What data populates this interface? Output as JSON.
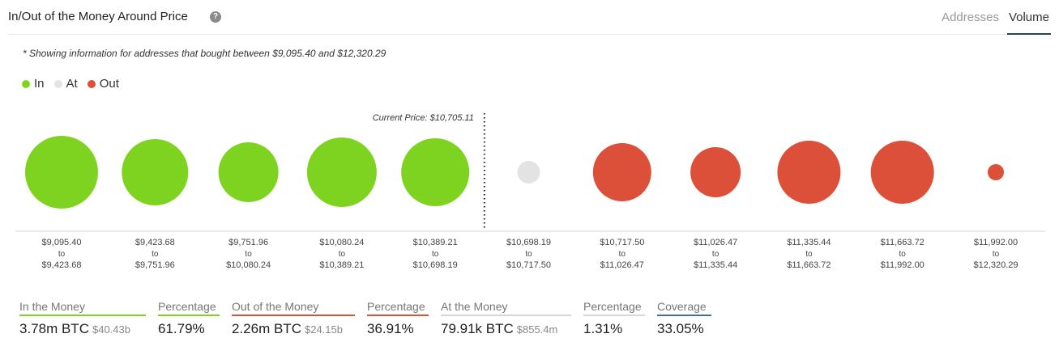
{
  "header": {
    "title": "In/Out of the Money Around Price",
    "help_icon": "question-circle-icon",
    "tabs": [
      {
        "label": "Addresses",
        "active": false
      },
      {
        "label": "Volume",
        "active": true
      }
    ]
  },
  "note": "* Showing information for addresses that bought between $9,095.40 and $12,320.29",
  "legend": [
    {
      "label": "In",
      "color": "#7ed321"
    },
    {
      "label": "At",
      "color": "#e3e3e3"
    },
    {
      "label": "Out",
      "color": "#dc4f38"
    }
  ],
  "chart_data": {
    "type": "scatter",
    "current_price_label": "Current Price: $10,705.11",
    "current_price_after_index": 4,
    "bubbles": [
      {
        "from": "$9,095.40",
        "to": "$9,423.68",
        "status": "in",
        "size": 45
      },
      {
        "from": "$9,423.68",
        "to": "$9,751.96",
        "status": "in",
        "size": 41
      },
      {
        "from": "$9,751.96",
        "to": "$10,080.24",
        "status": "in",
        "size": 37
      },
      {
        "from": "$10,080.24",
        "to": "$10,389.21",
        "status": "in",
        "size": 43
      },
      {
        "from": "$10,389.21",
        "to": "$10,698.19",
        "status": "in",
        "size": 42
      },
      {
        "from": "$10,698.19",
        "to": "$10,717.50",
        "status": "at",
        "size": 14
      },
      {
        "from": "$10,717.50",
        "to": "$11,026.47",
        "status": "out",
        "size": 36
      },
      {
        "from": "$11,026.47",
        "to": "$11,335.44",
        "status": "out",
        "size": 31
      },
      {
        "from": "$11,335.44",
        "to": "$11,663.72",
        "status": "out",
        "size": 39
      },
      {
        "from": "$11,663.72",
        "to": "$11,992.00",
        "status": "out",
        "size": 39
      },
      {
        "from": "$11,992.00",
        "to": "$12,320.29",
        "status": "out",
        "size": 10
      }
    ],
    "range_connector": "to",
    "colors": {
      "in": "#7ed321",
      "at": "#e3e3e3",
      "out": "#dc4f38"
    }
  },
  "summary": {
    "in_money": {
      "label": "In the Money",
      "value": "3.78m BTC",
      "sub": "$40.43b",
      "color": "#7ed321"
    },
    "in_pct": {
      "label": "Percentage",
      "value": "61.79%",
      "color": "#7ed321"
    },
    "out_money": {
      "label": "Out of the Money",
      "value": "2.26m BTC",
      "sub": "$24.15b",
      "color": "#dc4f38"
    },
    "out_pct": {
      "label": "Percentage",
      "value": "36.91%",
      "color": "#dc4f38"
    },
    "at_money": {
      "label": "At the Money",
      "value": "79.91k BTC",
      "sub": "$855.4m",
      "color": "#d6d6d6"
    },
    "at_pct": {
      "label": "Percentage",
      "value": "1.31%",
      "color": "#d6d6d6"
    },
    "coverage": {
      "label": "Coverage",
      "value": "33.05%",
      "color": "#3f6fa0"
    }
  }
}
